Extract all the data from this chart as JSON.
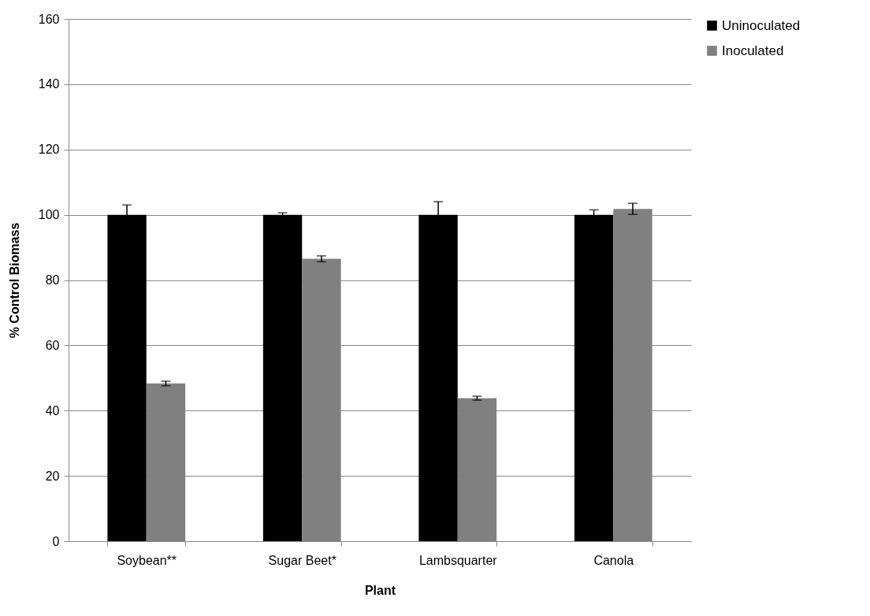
{
  "chart_data": {
    "type": "bar",
    "xlabel": "Plant",
    "ylabel": "% Control Biomass",
    "categories": [
      "Soybean**",
      "Sugar Beet*",
      "Lambsquarter",
      "Canola"
    ],
    "series": [
      {
        "name": "Uninoculated",
        "color": "#000000",
        "values": [
          100,
          100,
          100,
          100
        ],
        "errors": [
          3.0,
          0.6,
          4.0,
          1.5
        ]
      },
      {
        "name": "Inoculated",
        "color": "#808080",
        "values": [
          48.3,
          86.5,
          43.8,
          101.8
        ],
        "errors": [
          0.7,
          0.9,
          0.6,
          1.7
        ]
      }
    ],
    "ylim": [
      0,
      160
    ],
    "yticks": [
      0,
      20,
      40,
      60,
      80,
      100,
      120,
      140,
      160
    ],
    "grid": "y",
    "legend": "right"
  }
}
